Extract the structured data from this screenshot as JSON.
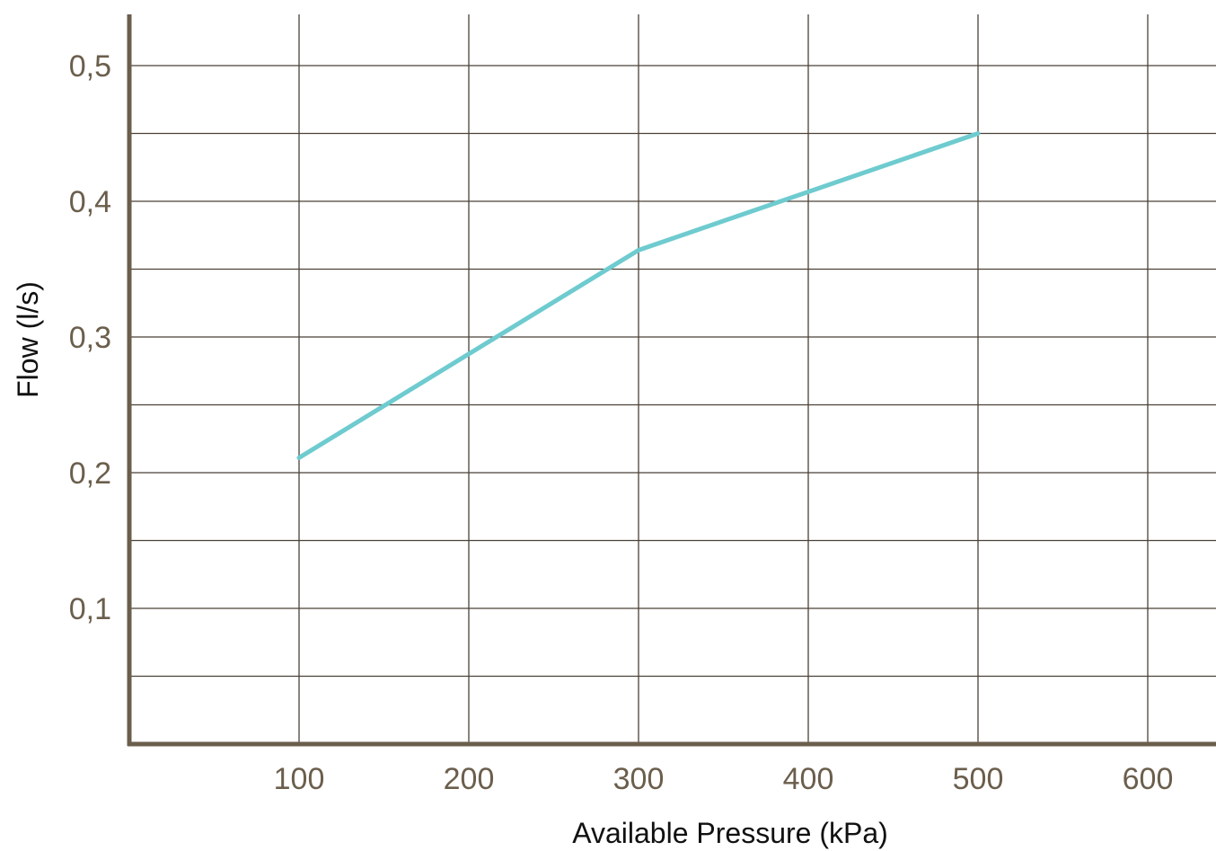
{
  "chart_data": {
    "type": "line",
    "xlabel": "Available Pressure (kPa)",
    "ylabel": "Flow (l/s)",
    "x_ticks": [
      100,
      200,
      300,
      400,
      500,
      600
    ],
    "x_tick_labels": [
      "100",
      "200",
      "300",
      "400",
      "500",
      "600"
    ],
    "y_ticks": [
      0.1,
      0.2,
      0.3,
      0.4,
      0.5
    ],
    "y_tick_labels": [
      "0,1",
      "0,2",
      "0,3",
      "0,4",
      "0,5"
    ],
    "x_grid": [
      100,
      200,
      300,
      400,
      500,
      600
    ],
    "y_grid": [
      0.05,
      0.1,
      0.15,
      0.2,
      0.25,
      0.3,
      0.35,
      0.4,
      0.45,
      0.5
    ],
    "xlim": [
      0,
      645
    ],
    "ylim": [
      0,
      0.535
    ],
    "grid": true,
    "series": [
      {
        "color": "#6ecbcf",
        "x": [
          100,
          300,
          500
        ],
        "y": [
          0.211,
          0.364,
          0.45
        ]
      }
    ]
  }
}
